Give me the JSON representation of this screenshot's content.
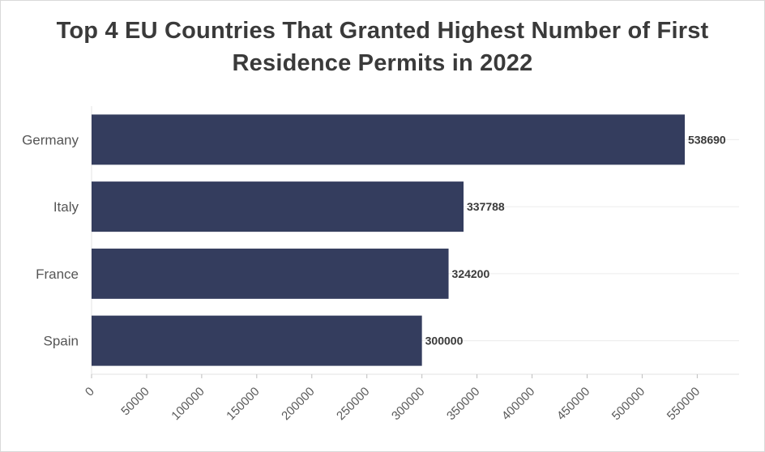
{
  "chart_data": {
    "type": "bar",
    "orientation": "horizontal",
    "title_lines": [
      "Top 4 EU Countries That Granted Highest Number of First",
      "Residence Permits in 2022"
    ],
    "categories": [
      "Germany",
      "Italy",
      "France",
      "Spain"
    ],
    "values": [
      538690,
      337788,
      324200,
      300000
    ],
    "data_labels": [
      "538690",
      "337788",
      "324200",
      "300000"
    ],
    "xlabel": "",
    "ylabel": "",
    "xlim": [
      0,
      588000
    ],
    "xticks": [
      0,
      50000,
      100000,
      150000,
      200000,
      250000,
      300000,
      350000,
      400000,
      450000,
      500000,
      550000
    ],
    "grid": true,
    "bar_color": "#343d5e"
  }
}
